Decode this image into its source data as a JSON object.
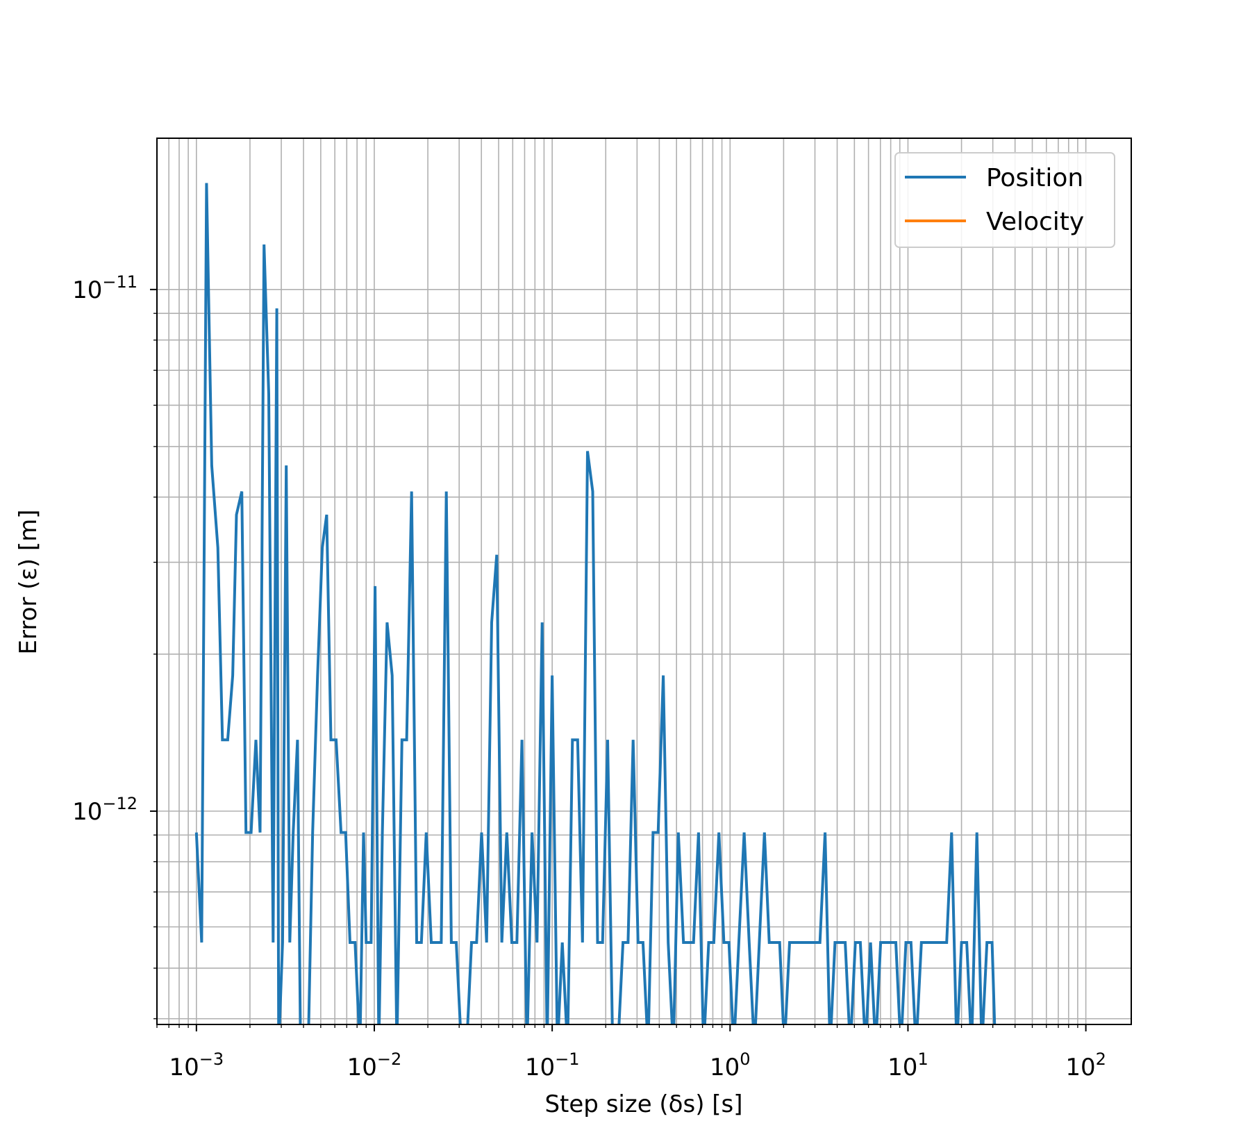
{
  "chart_data": {
    "type": "line",
    "title": "",
    "xlabel": "Step size (δs) [s]",
    "ylabel": "Error (ε) [m]",
    "xscale": "log",
    "yscale": "log",
    "xlim": [
      0.0006,
      180
    ],
    "ylim": [
      3.9e-13,
      1.95e-11
    ],
    "grid": "both-major-and-minor",
    "legend": {
      "placement": "top-right",
      "entries": [
        {
          "name": "Position",
          "color": "#1f77b4"
        },
        {
          "name": "Velocity",
          "color": "#ff7f0e"
        }
      ]
    },
    "x_ticks": [
      {
        "value": 0.001,
        "base": "10",
        "exp": "−3"
      },
      {
        "value": 0.01,
        "base": "10",
        "exp": "−2"
      },
      {
        "value": 0.1,
        "base": "10",
        "exp": "−1"
      },
      {
        "value": 1,
        "base": "10",
        "exp": "0"
      },
      {
        "value": 10,
        "base": "10",
        "exp": "1"
      },
      {
        "value": 100,
        "base": "10",
        "exp": "2"
      }
    ],
    "y_ticks": [
      {
        "value": 1e-12,
        "base": "10",
        "exp": "−12"
      },
      {
        "value": 1e-11,
        "base": "10",
        "exp": "−11"
      }
    ],
    "series": [
      {
        "name": "Position",
        "color": "#1f77b4",
        "points": [
          [
            0.001,
            9.1e-13
          ],
          [
            0.00107,
            5.6e-13
          ],
          [
            0.00114,
            1.6e-11
          ],
          [
            0.00122,
            4.6e-12
          ],
          [
            0.00132,
            3.2e-12
          ],
          [
            0.0014,
            1.37e-12
          ],
          [
            0.0015,
            1.37e-12
          ],
          [
            0.0016,
            1.82e-12
          ],
          [
            0.00168,
            3.7e-12
          ],
          [
            0.0018,
            4.1e-12
          ],
          [
            0.0019,
            9.1e-13
          ],
          [
            0.00203,
            9.1e-13
          ],
          [
            0.00216,
            1.37e-12
          ],
          [
            0.00228,
            9.1e-13
          ],
          [
            0.0024,
            1.22e-11
          ],
          [
            0.00255,
            6.3e-12
          ],
          [
            0.0027,
            5.6e-13
          ],
          [
            0.00283,
            9.2e-12
          ],
          [
            0.0029,
            3.5e-13
          ],
          [
            0.00305,
            5.6e-13
          ],
          [
            0.0032,
            4.6e-12
          ],
          [
            0.00335,
            5.6e-13
          ],
          [
            0.0035,
            9.1e-13
          ],
          [
            0.0037,
            1.37e-12
          ],
          [
            0.00385,
            3.5e-13
          ],
          [
            0.004,
            3.5e-13
          ],
          [
            0.00425,
            3.5e-13
          ],
          [
            0.0045,
            9.1e-13
          ],
          [
            0.0048,
            1.82e-12
          ],
          [
            0.0051,
            3.2e-12
          ],
          [
            0.0054,
            3.7e-12
          ],
          [
            0.0057,
            1.37e-12
          ],
          [
            0.0061,
            1.37e-12
          ],
          [
            0.0065,
            9.1e-13
          ],
          [
            0.0069,
            9.1e-13
          ],
          [
            0.0073,
            5.6e-13
          ],
          [
            0.0078,
            5.6e-13
          ],
          [
            0.0083,
            3.5e-13
          ],
          [
            0.0087,
            9.1e-13
          ],
          [
            0.009,
            5.6e-13
          ],
          [
            0.0096,
            5.6e-13
          ],
          [
            0.0101,
            2.7e-12
          ],
          [
            0.0106,
            3.5e-13
          ],
          [
            0.0111,
            9.1e-13
          ],
          [
            0.0118,
            2.3e-12
          ],
          [
            0.0126,
            1.82e-12
          ],
          [
            0.0134,
            3.5e-13
          ],
          [
            0.0143,
            1.37e-12
          ],
          [
            0.0152,
            1.37e-12
          ],
          [
            0.0162,
            4.1e-12
          ],
          [
            0.0173,
            5.6e-13
          ],
          [
            0.0184,
            5.6e-13
          ],
          [
            0.0196,
            9.1e-13
          ],
          [
            0.0209,
            5.6e-13
          ],
          [
            0.0223,
            5.6e-13
          ],
          [
            0.0238,
            5.6e-13
          ],
          [
            0.0254,
            4.1e-12
          ],
          [
            0.0271,
            5.6e-13
          ],
          [
            0.0289,
            5.6e-13
          ],
          [
            0.0309,
            3.5e-13
          ],
          [
            0.033,
            3.5e-13
          ],
          [
            0.0352,
            5.6e-13
          ],
          [
            0.0376,
            5.6e-13
          ],
          [
            0.0401,
            9.1e-13
          ],
          [
            0.0428,
            5.6e-13
          ],
          [
            0.0457,
            2.3e-12
          ],
          [
            0.0488,
            3.1e-12
          ],
          [
            0.0521,
            5.6e-13
          ],
          [
            0.0556,
            9.1e-13
          ],
          [
            0.0593,
            5.6e-13
          ],
          [
            0.0633,
            5.6e-13
          ],
          [
            0.0676,
            1.37e-12
          ],
          [
            0.0722,
            3.5e-13
          ],
          [
            0.077,
            9.1e-13
          ],
          [
            0.0822,
            5.6e-13
          ],
          [
            0.0878,
            2.3e-12
          ],
          [
            0.0937,
            3.5e-13
          ],
          [
            0.1,
            1.82e-12
          ],
          [
            0.107,
            3.5e-13
          ],
          [
            0.114,
            5.6e-13
          ],
          [
            0.122,
            3.5e-13
          ],
          [
            0.13,
            1.37e-12
          ],
          [
            0.139,
            1.37e-12
          ],
          [
            0.148,
            5.6e-13
          ],
          [
            0.158,
            4.9e-12
          ],
          [
            0.169,
            4.1e-12
          ],
          [
            0.18,
            5.6e-13
          ],
          [
            0.192,
            5.6e-13
          ],
          [
            0.205,
            1.37e-12
          ],
          [
            0.219,
            3.5e-13
          ],
          [
            0.234,
            3.5e-13
          ],
          [
            0.25,
            5.6e-13
          ],
          [
            0.267,
            5.6e-13
          ],
          [
            0.285,
            1.37e-12
          ],
          [
            0.304,
            5.6e-13
          ],
          [
            0.324,
            5.6e-13
          ],
          [
            0.346,
            3.5e-13
          ],
          [
            0.369,
            9.1e-13
          ],
          [
            0.394,
            9.1e-13
          ],
          [
            0.421,
            1.82e-12
          ],
          [
            0.449,
            5.6e-13
          ],
          [
            0.48,
            3.5e-13
          ],
          [
            0.512,
            9.1e-13
          ],
          [
            0.547,
            5.6e-13
          ],
          [
            0.584,
            5.6e-13
          ],
          [
            0.623,
            5.6e-13
          ],
          [
            0.665,
            9.1e-13
          ],
          [
            0.71,
            3.5e-13
          ],
          [
            0.758,
            5.6e-13
          ],
          [
            0.81,
            5.6e-13
          ],
          [
            0.865,
            9.1e-13
          ],
          [
            0.923,
            5.6e-13
          ],
          [
            0.986,
            5.6e-13
          ],
          [
            1.05,
            3.5e-13
          ],
          [
            1.12,
            5.6e-13
          ],
          [
            1.2,
            9.1e-13
          ],
          [
            1.28,
            5.6e-13
          ],
          [
            1.37,
            3.5e-13
          ],
          [
            1.46,
            5.6e-13
          ],
          [
            1.56,
            9.1e-13
          ],
          [
            1.66,
            5.6e-13
          ],
          [
            1.78,
            5.6e-13
          ],
          [
            1.9,
            5.6e-13
          ],
          [
            2.02,
            3.5e-13
          ],
          [
            2.16,
            5.6e-13
          ],
          [
            2.31,
            5.6e-13
          ],
          [
            2.46,
            5.6e-13
          ],
          [
            2.63,
            5.6e-13
          ],
          [
            2.81,
            5.6e-13
          ],
          [
            3.0,
            5.6e-13
          ],
          [
            3.2,
            5.6e-13
          ],
          [
            3.42,
            9.1e-13
          ],
          [
            3.65,
            3.5e-13
          ],
          [
            3.89,
            5.6e-13
          ],
          [
            4.16,
            5.6e-13
          ],
          [
            4.44,
            5.6e-13
          ],
          [
            4.74,
            3.5e-13
          ],
          [
            5.06,
            5.6e-13
          ],
          [
            5.4,
            5.6e-13
          ],
          [
            5.77,
            3.5e-13
          ],
          [
            6.16,
            5.6e-13
          ],
          [
            6.58,
            3.5e-13
          ],
          [
            7.02,
            5.6e-13
          ],
          [
            7.5,
            5.6e-13
          ],
          [
            8.0,
            5.6e-13
          ],
          [
            8.55,
            5.6e-13
          ],
          [
            9.12,
            3.5e-13
          ],
          [
            9.74,
            5.6e-13
          ],
          [
            10.4,
            5.6e-13
          ],
          [
            11.1,
            3.5e-13
          ],
          [
            11.9,
            5.6e-13
          ],
          [
            12.7,
            5.6e-13
          ],
          [
            13.5,
            5.6e-13
          ],
          [
            14.4,
            5.6e-13
          ],
          [
            15.4,
            5.6e-13
          ],
          [
            16.5,
            5.6e-13
          ],
          [
            17.6,
            9.1e-13
          ],
          [
            18.8,
            3.5e-13
          ],
          [
            20.0,
            5.6e-13
          ],
          [
            21.4,
            5.6e-13
          ],
          [
            22.8,
            3.5e-13
          ],
          [
            24.4,
            9.1e-13
          ],
          [
            26.0,
            3.5e-13
          ],
          [
            27.8,
            5.6e-13
          ],
          [
            29.7,
            5.6e-13
          ],
          [
            31.0,
            3.5e-13
          ]
        ]
      },
      {
        "name": "Velocity",
        "color": "#ff7f0e",
        "points": []
      }
    ]
  }
}
